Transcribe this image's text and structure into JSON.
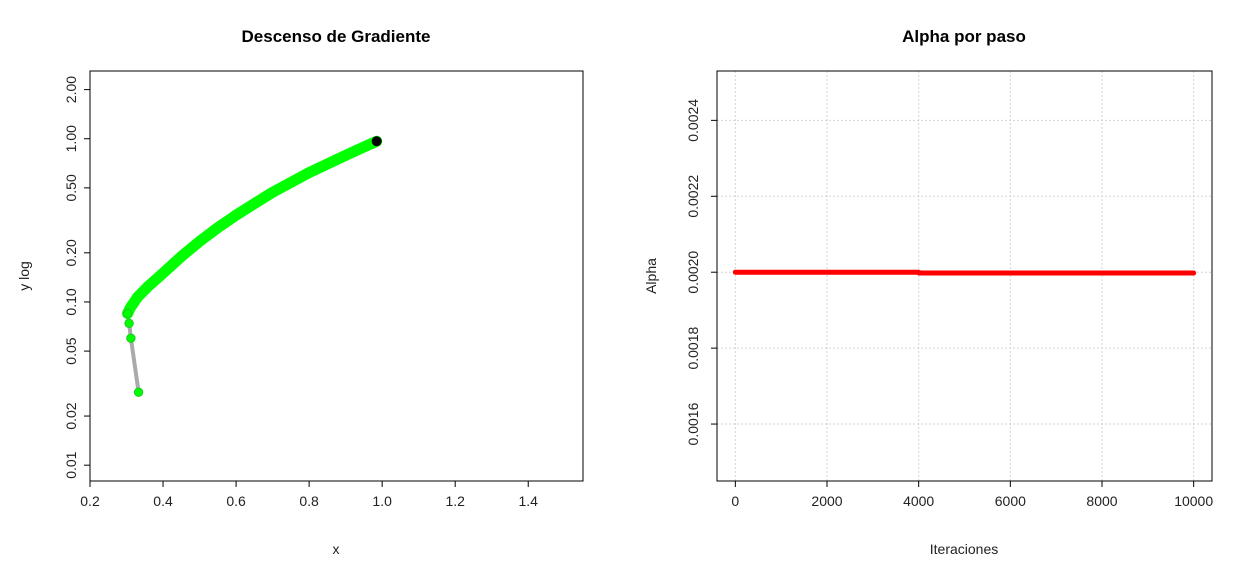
{
  "chart_data": [
    {
      "type": "scatter",
      "title": "Descenso de Gradiente",
      "xlabel": "x",
      "ylabel": "y log",
      "xlim": [
        0.2,
        1.55
      ],
      "ylim": [
        0.008,
        2.6
      ],
      "ylog": true,
      "xticks": [
        0.2,
        0.4,
        0.6,
        0.8,
        1.0,
        1.2,
        1.4
      ],
      "xtick_labels": [
        "0.2",
        "0.4",
        "0.6",
        "0.8",
        "1.0",
        "1.2",
        "1.4"
      ],
      "yticks": [
        0.01,
        0.02,
        0.05,
        0.1,
        0.2,
        0.5,
        1.0,
        2.0
      ],
      "ytick_labels": [
        "0.01",
        "0.02",
        "0.05",
        "0.10",
        "0.20",
        "0.50",
        "1.00",
        "2.00"
      ],
      "colors": {
        "points": "#00ff00",
        "path": "#aaaaaa",
        "start": "#000000"
      },
      "path": [
        {
          "x": 0.333,
          "y": 0.028
        },
        {
          "x": 0.312,
          "y": 0.06
        },
        {
          "x": 0.307,
          "y": 0.074
        },
        {
          "x": 0.303,
          "y": 0.085
        },
        {
          "x": 0.31,
          "y": 0.092
        },
        {
          "x": 0.33,
          "y": 0.107
        },
        {
          "x": 0.36,
          "y": 0.125
        },
        {
          "x": 0.4,
          "y": 0.15
        },
        {
          "x": 0.45,
          "y": 0.19
        },
        {
          "x": 0.5,
          "y": 0.235
        },
        {
          "x": 0.55,
          "y": 0.285
        },
        {
          "x": 0.6,
          "y": 0.34
        },
        {
          "x": 0.65,
          "y": 0.4
        },
        {
          "x": 0.7,
          "y": 0.47
        },
        {
          "x": 0.75,
          "y": 0.54
        },
        {
          "x": 0.8,
          "y": 0.62
        },
        {
          "x": 0.85,
          "y": 0.7
        },
        {
          "x": 0.9,
          "y": 0.79
        },
        {
          "x": 0.95,
          "y": 0.89
        },
        {
          "x": 0.985,
          "y": 0.965
        }
      ],
      "start_point": {
        "x": 0.985,
        "y": 0.965
      }
    },
    {
      "type": "line",
      "title": "Alpha por paso",
      "xlabel": "Iteraciones",
      "ylabel": "Alpha",
      "xlim": [
        -400,
        10400
      ],
      "ylim": [
        0.00145,
        0.00253
      ],
      "grid": true,
      "xticks": [
        0,
        2000,
        4000,
        6000,
        8000,
        10000
      ],
      "xtick_labels": [
        "0",
        "2000",
        "4000",
        "6000",
        "8000",
        "10000"
      ],
      "yticks": [
        0.0016,
        0.0018,
        0.002,
        0.0022,
        0.0024
      ],
      "ytick_labels": [
        "0.0016",
        "0.0018",
        "0.0020",
        "0.0022",
        "0.0024"
      ],
      "colors": {
        "line": "#ff0000",
        "grid": "#d3d3d3"
      },
      "x": [
        0,
        4000,
        4000,
        10000
      ],
      "y": [
        0.002,
        0.002,
        0.001998,
        0.001998
      ]
    }
  ]
}
